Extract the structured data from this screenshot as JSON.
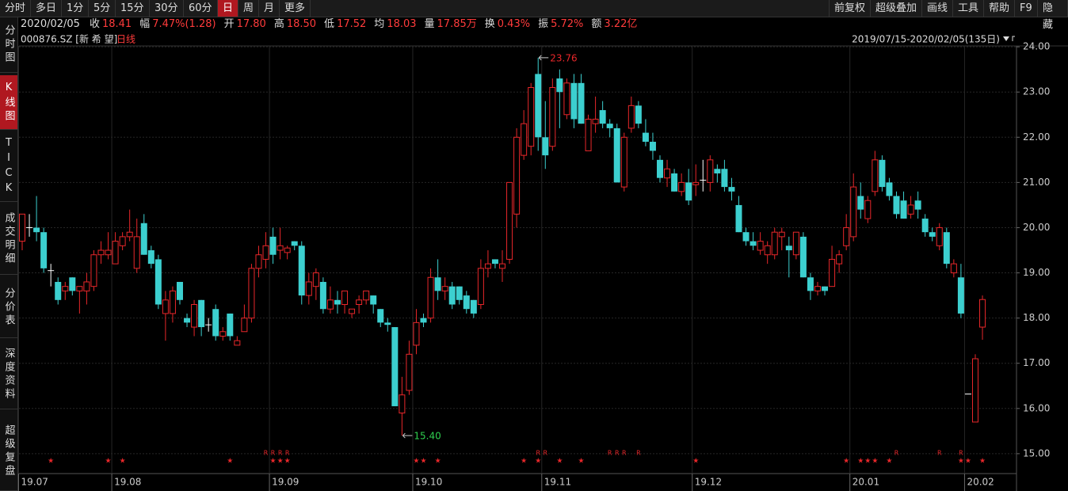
{
  "toolbar": {
    "left": [
      "分时",
      "多日",
      "1分",
      "5分",
      "15分",
      "30分",
      "60分",
      "日",
      "周",
      "月",
      "更多"
    ],
    "active": 7,
    "right": [
      "前复权",
      "超级叠加",
      "画线",
      "工具",
      "帮助",
      "F9",
      "隐藏"
    ]
  },
  "sidebar": [
    "分时图",
    "K线图",
    "TICK",
    "成交明细",
    "分价表",
    "深度资料",
    "超级复盘"
  ],
  "sidebar_active": 1,
  "info": {
    "date": "2020/02/05",
    "items": [
      {
        "label": "收",
        "value": "18.41"
      },
      {
        "label": "幅",
        "value": "7.47%(1.28)"
      },
      {
        "label": "开",
        "value": "17.80"
      },
      {
        "label": "高",
        "value": "18.50"
      },
      {
        "label": "低",
        "value": "17.52"
      },
      {
        "label": "均",
        "value": "18.03"
      },
      {
        "label": "量",
        "value": "17.85万"
      },
      {
        "label": "换",
        "value": "0.43%"
      },
      {
        "label": "振",
        "value": "5.72%"
      },
      {
        "label": "额",
        "value": "3.22亿"
      }
    ]
  },
  "chart_data": {
    "type": "candlestick",
    "code": "000876.SZ [新 希 望]",
    "period": "日线",
    "range": "2019/07/15-2020/02/05(135日)",
    "up_color": "#e8272a",
    "down_color": "#3ccfcf",
    "flat_color": "#ffffff",
    "ylim": [
      14.56,
      24.02
    ],
    "yticks": [
      {
        "value": 24,
        "label": "24.00"
      },
      {
        "value": 23,
        "label": "23.00"
      },
      {
        "value": 22,
        "label": "22.00"
      },
      {
        "value": 21,
        "label": "21.00"
      },
      {
        "value": 20,
        "label": "20.00"
      },
      {
        "value": 19,
        "label": "19.00"
      },
      {
        "value": 18,
        "label": "18.00"
      },
      {
        "value": 17,
        "label": "17.00"
      },
      {
        "value": 16,
        "label": "16.00"
      },
      {
        "value": 15,
        "label": "15.00"
      }
    ],
    "xticks": [
      {
        "value": 0,
        "label": "19.07"
      },
      {
        "value": 13,
        "label": "19.08"
      },
      {
        "value": 35,
        "label": "19.09"
      },
      {
        "value": 55,
        "label": "19.10"
      },
      {
        "value": 73,
        "label": "19.11"
      },
      {
        "value": 94,
        "label": "19.12"
      },
      {
        "value": 116,
        "label": "20.01"
      },
      {
        "value": 132,
        "label": "20.02"
      }
    ],
    "grid": true,
    "candles": [
      [
        19.7,
        20.3,
        19.5,
        20.3
      ],
      [
        20.0,
        20.3,
        19.8,
        20.0
      ],
      [
        20.0,
        20.7,
        19.7,
        19.9
      ],
      [
        19.9,
        20.0,
        19.0,
        19.1
      ],
      [
        19.05,
        19.2,
        18.7,
        19.05
      ],
      [
        18.8,
        18.9,
        18.3,
        18.4
      ],
      [
        18.6,
        18.8,
        18.4,
        18.7
      ],
      [
        18.9,
        18.9,
        18.5,
        18.6
      ],
      [
        18.6,
        18.7,
        18.1,
        18.7
      ],
      [
        18.6,
        19.0,
        18.3,
        18.8
      ],
      [
        18.7,
        19.5,
        18.6,
        19.4
      ],
      [
        19.4,
        19.7,
        19.2,
        19.5
      ],
      [
        19.4,
        19.9,
        19.3,
        19.5
      ],
      [
        19.2,
        19.9,
        19.2,
        19.7
      ],
      [
        19.6,
        19.9,
        19.5,
        19.8
      ],
      [
        19.8,
        20.4,
        19.7,
        19.9
      ],
      [
        19.1,
        20.2,
        19.0,
        19.8
      ],
      [
        20.1,
        20.3,
        19.4,
        19.4
      ],
      [
        19.5,
        19.6,
        19.1,
        19.2
      ],
      [
        19.3,
        19.4,
        18.2,
        18.3
      ],
      [
        18.1,
        18.6,
        17.5,
        18.4
      ],
      [
        18.1,
        18.7,
        17.9,
        18.6
      ],
      [
        18.8,
        18.8,
        18.3,
        18.4
      ],
      [
        18.0,
        18.1,
        17.8,
        17.9
      ],
      [
        17.8,
        18.4,
        17.6,
        18.3
      ],
      [
        18.4,
        18.4,
        17.6,
        17.8
      ],
      [
        17.85,
        18.0,
        17.7,
        17.85
      ],
      [
        18.2,
        18.3,
        17.5,
        17.6
      ],
      [
        17.6,
        17.8,
        17.5,
        17.7
      ],
      [
        18.1,
        18.1,
        17.5,
        17.6
      ],
      [
        17.4,
        17.6,
        17.4,
        17.5
      ],
      [
        17.7,
        18.3,
        17.7,
        18.0
      ],
      [
        18.0,
        19.2,
        17.9,
        19.1
      ],
      [
        19.1,
        19.6,
        18.9,
        19.4
      ],
      [
        19.3,
        19.9,
        19.1,
        19.6
      ],
      [
        19.8,
        20.0,
        19.2,
        19.4
      ],
      [
        19.5,
        20.0,
        19.3,
        19.6
      ],
      [
        19.45,
        19.6,
        19.3,
        19.55
      ],
      [
        19.7,
        19.7,
        19.5,
        19.6
      ],
      [
        19.6,
        19.7,
        18.3,
        18.5
      ],
      [
        18.5,
        19.0,
        18.3,
        18.8
      ],
      [
        18.7,
        19.1,
        18.4,
        19.0
      ],
      [
        18.8,
        18.9,
        18.1,
        18.2
      ],
      [
        18.2,
        18.7,
        18.1,
        18.4
      ],
      [
        18.4,
        18.6,
        18.1,
        18.3
      ],
      [
        18.3,
        18.6,
        18.1,
        18.6
      ],
      [
        18.1,
        18.2,
        18.0,
        18.2
      ],
      [
        18.3,
        18.5,
        18.1,
        18.4
      ],
      [
        18.4,
        18.6,
        18.3,
        18.6
      ],
      [
        18.5,
        18.5,
        18.1,
        18.3
      ],
      [
        18.2,
        18.2,
        17.8,
        17.9
      ],
      [
        17.9,
        18.0,
        17.7,
        17.85
      ],
      [
        17.8,
        17.8,
        16.05,
        16.05
      ],
      [
        15.9,
        16.7,
        15.4,
        16.3
      ],
      [
        16.4,
        17.5,
        16.3,
        17.2
      ],
      [
        17.4,
        18.2,
        17.2,
        17.9
      ],
      [
        18.0,
        18.1,
        17.8,
        17.9
      ],
      [
        18.0,
        19.1,
        17.9,
        18.9
      ],
      [
        18.9,
        19.3,
        18.4,
        18.6
      ],
      [
        18.6,
        18.9,
        18.4,
        18.7
      ],
      [
        18.7,
        18.8,
        18.2,
        18.3
      ],
      [
        18.7,
        18.7,
        18.3,
        18.4
      ],
      [
        18.5,
        18.6,
        18.1,
        18.2
      ],
      [
        18.4,
        18.4,
        18.0,
        18.1
      ],
      [
        18.3,
        19.3,
        18.2,
        19.1
      ],
      [
        19.1,
        19.5,
        18.9,
        19.2
      ],
      [
        19.3,
        19.3,
        19.1,
        19.2
      ],
      [
        19.1,
        19.5,
        18.8,
        19.2
      ],
      [
        19.3,
        21.0,
        19.2,
        21.0
      ],
      [
        20.3,
        22.2,
        20.0,
        22.0
      ],
      [
        21.6,
        22.6,
        21.5,
        22.3
      ],
      [
        21.8,
        23.2,
        21.6,
        23.1
      ],
      [
        23.4,
        23.76,
        21.7,
        22.0
      ],
      [
        22.0,
        22.8,
        21.3,
        21.6
      ],
      [
        21.8,
        23.3,
        21.7,
        23.1
      ],
      [
        23.3,
        23.5,
        22.2,
        23.0
      ],
      [
        22.5,
        23.3,
        22.4,
        23.2
      ],
      [
        23.2,
        23.4,
        22.2,
        22.4
      ],
      [
        23.2,
        23.4,
        22.3,
        22.3
      ],
      [
        21.7,
        22.5,
        21.7,
        22.4
      ],
      [
        22.3,
        22.9,
        22.1,
        22.4
      ],
      [
        22.6,
        22.8,
        22.2,
        22.3
      ],
      [
        22.3,
        22.4,
        22.0,
        22.2
      ],
      [
        22.2,
        22.3,
        21.0,
        21.0
      ],
      [
        20.9,
        22.1,
        20.8,
        22.0
      ],
      [
        22.2,
        22.9,
        22.1,
        22.7
      ],
      [
        22.7,
        22.8,
        22.2,
        22.3
      ],
      [
        22.1,
        22.4,
        21.8,
        21.9
      ],
      [
        21.9,
        22.1,
        21.5,
        21.7
      ],
      [
        21.5,
        21.6,
        21.0,
        21.1
      ],
      [
        21.1,
        21.5,
        20.9,
        21.3
      ],
      [
        21.2,
        21.3,
        20.8,
        20.8
      ],
      [
        20.8,
        21.2,
        20.7,
        21.0
      ],
      [
        21.0,
        21.3,
        20.5,
        20.6
      ],
      [
        20.95,
        21.4,
        20.7,
        21.0
      ],
      [
        21.05,
        21.5,
        20.8,
        21.05
      ],
      [
        21.0,
        21.6,
        20.8,
        21.5
      ],
      [
        21.3,
        21.4,
        21.0,
        21.2
      ],
      [
        21.3,
        21.5,
        20.8,
        20.9
      ],
      [
        20.9,
        21.1,
        20.6,
        20.8
      ],
      [
        20.5,
        20.7,
        19.9,
        19.9
      ],
      [
        19.9,
        20.0,
        19.6,
        19.7
      ],
      [
        19.7,
        19.9,
        19.5,
        19.6
      ],
      [
        19.5,
        19.9,
        19.4,
        19.7
      ],
      [
        19.4,
        19.7,
        19.2,
        19.6
      ],
      [
        19.4,
        20.0,
        19.3,
        19.9
      ],
      [
        19.8,
        20.0,
        19.5,
        19.9
      ],
      [
        19.6,
        19.8,
        18.9,
        19.5
      ],
      [
        19.4,
        19.9,
        19.3,
        19.9
      ],
      [
        19.8,
        19.9,
        18.9,
        18.9
      ],
      [
        18.9,
        19.0,
        18.4,
        18.6
      ],
      [
        18.6,
        18.8,
        18.5,
        18.7
      ],
      [
        18.7,
        18.7,
        18.5,
        18.6
      ],
      [
        18.7,
        19.6,
        18.7,
        19.3
      ],
      [
        19.2,
        19.5,
        19.0,
        19.4
      ],
      [
        19.6,
        20.3,
        19.5,
        20.0
      ],
      [
        19.8,
        21.2,
        19.7,
        20.9
      ],
      [
        20.7,
        21.0,
        20.2,
        20.4
      ],
      [
        20.2,
        20.7,
        20.1,
        20.6
      ],
      [
        20.8,
        21.7,
        20.7,
        21.5
      ],
      [
        21.5,
        21.6,
        20.8,
        20.9
      ],
      [
        21.0,
        21.1,
        20.6,
        20.7
      ],
      [
        20.7,
        20.8,
        20.2,
        20.3
      ],
      [
        20.6,
        20.8,
        20.2,
        20.2
      ],
      [
        20.3,
        20.7,
        20.2,
        20.5
      ],
      [
        20.6,
        20.8,
        20.2,
        20.4
      ],
      [
        20.2,
        20.3,
        19.8,
        19.9
      ],
      [
        19.9,
        20.0,
        19.7,
        19.8
      ],
      [
        19.6,
        20.1,
        19.5,
        20.0
      ],
      [
        19.9,
        20.0,
        19.1,
        19.2
      ],
      [
        19.0,
        19.3,
        18.9,
        19.2
      ],
      [
        18.9,
        19.2,
        18.0,
        18.1
      ],
      [
        16.32,
        16.32,
        16.32,
        16.32
      ],
      [
        15.7,
        17.2,
        15.7,
        17.1
      ],
      [
        17.8,
        18.5,
        17.52,
        18.41
      ]
    ],
    "annotations": [
      {
        "index": 72,
        "value": 23.76,
        "label": "23.76",
        "color": "#e8272a"
      },
      {
        "index": 53,
        "value": 15.4,
        "label": "15.40",
        "color": "#2fcf4f"
      }
    ],
    "event_rows": [
      {
        "symbol": "★",
        "at": [
          4,
          12,
          14,
          29,
          35,
          36,
          37,
          55,
          56,
          58,
          70,
          72,
          75,
          78,
          94,
          115,
          117,
          118,
          119,
          121,
          131,
          132,
          134
        ]
      },
      {
        "symbol": "R",
        "at": [
          34,
          35,
          36,
          37,
          72,
          73,
          82,
          83,
          84,
          86,
          122,
          128,
          131
        ]
      }
    ]
  }
}
